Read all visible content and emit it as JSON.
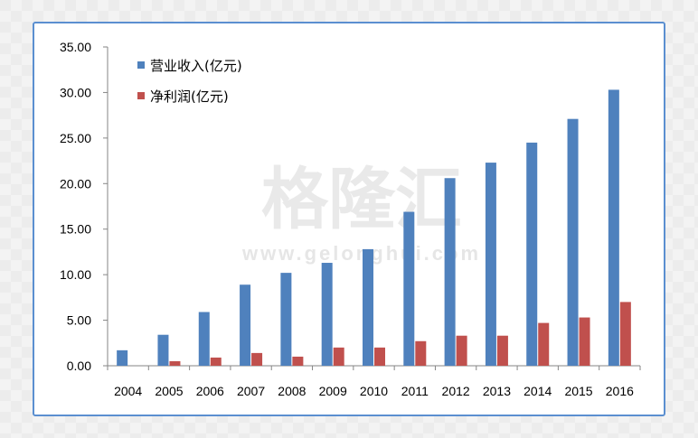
{
  "watermark": {
    "main": "格隆汇",
    "url": "www.gelonghui.com"
  },
  "colors": {
    "revenue": "#4f81bd",
    "profit": "#c0504d"
  },
  "chart_data": {
    "type": "bar",
    "categories": [
      "2004",
      "2005",
      "2006",
      "2007",
      "2008",
      "2009",
      "2010",
      "2011",
      "2012",
      "2013",
      "2014",
      "2015",
      "2016"
    ],
    "series": [
      {
        "name": "营业收入(亿元)",
        "values": [
          1.7,
          3.4,
          5.9,
          8.9,
          10.2,
          11.3,
          12.8,
          16.9,
          20.6,
          22.3,
          24.5,
          27.1,
          30.3
        ]
      },
      {
        "name": "净利润(亿元)",
        "values": [
          0.0,
          0.5,
          0.9,
          1.4,
          1.0,
          2.0,
          2.0,
          2.7,
          3.3,
          3.3,
          4.7,
          5.3,
          7.0
        ]
      }
    ],
    "yticks": [
      "0.00",
      "5.00",
      "10.00",
      "15.00",
      "20.00",
      "25.00",
      "30.00",
      "35.00"
    ],
    "ylim": [
      0,
      35
    ],
    "title": "",
    "xlabel": "",
    "ylabel": "",
    "grid": false,
    "legend_position": "top-left"
  }
}
